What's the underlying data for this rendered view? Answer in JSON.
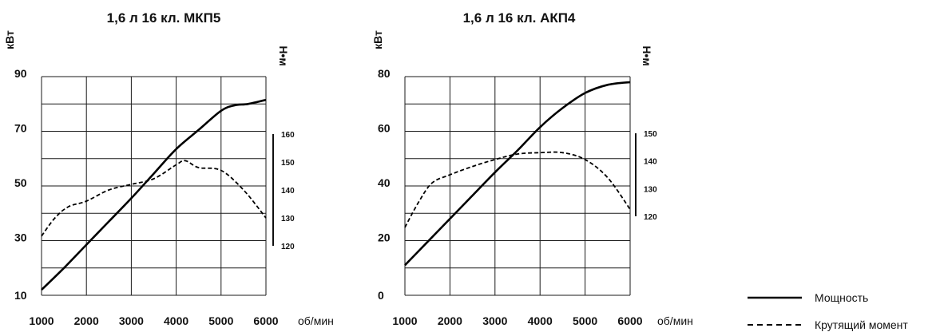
{
  "chart_data": [
    {
      "type": "line",
      "title": "1,6 л 16 кл. МКП5",
      "ylabel": "кВт",
      "y2label": "Н•м",
      "xunit": "об/мин",
      "xlim": [
        1000,
        6000
      ],
      "ylim": [
        10,
        90
      ],
      "y2lim": [
        120,
        160
      ],
      "xticks": [
        "1000",
        "2000",
        "3000",
        "4000",
        "5000",
        "6000"
      ],
      "yticks": [
        "10",
        "30",
        "50",
        "70",
        "90"
      ],
      "y2ticks": [
        "120",
        "130",
        "140",
        "150",
        "160"
      ],
      "grid": true,
      "series": [
        {
          "name": "Мощность",
          "axis": "left",
          "style": "solid",
          "x": [
            1000,
            1500,
            2000,
            2500,
            3000,
            3500,
            4000,
            4500,
            5000,
            5300,
            5600,
            6000
          ],
          "y": [
            12,
            20,
            28.5,
            37,
            45.5,
            54.5,
            63.5,
            70.5,
            77.5,
            79.5,
            80,
            81.5
          ]
        },
        {
          "name": "Крутящий момент",
          "axis": "right",
          "style": "dashed",
          "x": [
            1000,
            1300,
            1600,
            2000,
            2500,
            3000,
            3500,
            4000,
            4200,
            4500,
            5000,
            5500,
            6000
          ],
          "y": [
            123.5,
            130,
            134,
            136,
            140,
            142,
            144,
            149,
            150.5,
            148,
            147,
            140,
            130
          ]
        }
      ]
    },
    {
      "type": "line",
      "title": "1,6 л 16 кл. АКП4",
      "ylabel": "кВт",
      "y2label": "Н•м",
      "xunit": "об/мин",
      "xlim": [
        1000,
        6000
      ],
      "ylim": [
        0,
        80
      ],
      "y2lim": [
        120,
        150
      ],
      "xticks": [
        "1000",
        "2000",
        "3000",
        "4000",
        "5000",
        "6000"
      ],
      "yticks": [
        "0",
        "20",
        "40",
        "60",
        "80"
      ],
      "y2ticks": [
        "120",
        "130",
        "140",
        "150"
      ],
      "grid": true,
      "series": [
        {
          "name": "Мощность",
          "axis": "left",
          "style": "solid",
          "x": [
            1000,
            1500,
            2000,
            2500,
            3000,
            3500,
            4000,
            4500,
            5000,
            5500,
            6000
          ],
          "y": [
            11,
            19.5,
            28,
            36.5,
            45,
            53,
            61.5,
            68.5,
            74,
            77,
            78
          ]
        },
        {
          "name": "Крутящий момент",
          "axis": "right",
          "style": "dashed",
          "x": [
            1000,
            1300,
            1600,
            2000,
            2500,
            3000,
            3500,
            4000,
            4500,
            5000,
            5500,
            6000
          ],
          "y": [
            116,
            125,
            132,
            135,
            138,
            140.5,
            142.5,
            143,
            143,
            140.5,
            134,
            122.5
          ]
        }
      ]
    }
  ],
  "legend": {
    "placement": "bottom-right",
    "items": [
      {
        "label": "Мощность",
        "style": "solid"
      },
      {
        "label": "Крутящий момент",
        "style": "dashed"
      }
    ]
  }
}
